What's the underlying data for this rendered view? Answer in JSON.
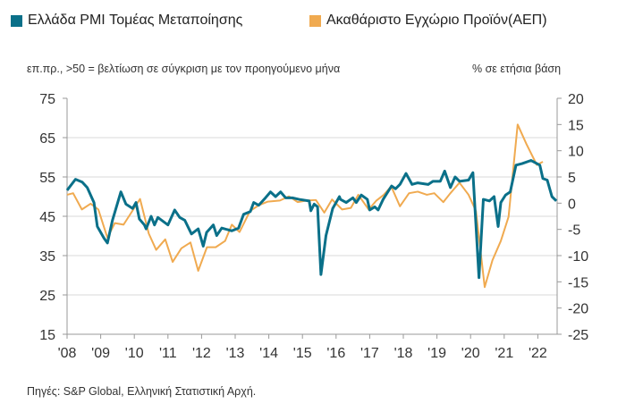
{
  "chart_data": {
    "type": "line",
    "legend": [
      "Ελλάδα PMI Τομέας Μεταποίησης",
      "Ακαθάριστο Εγχώριο Προϊόν(ΑΕΠ)"
    ],
    "legend_position": "top",
    "left_axis_label": "επ.πρ., >50 = βελτίωση σε σύγκριση με τον προηγούμενο μήνα",
    "right_axis_label": "% σε ετήσια βάση",
    "source": "Πηγές: S&P Global, Ελληνική Στατιστική Αρχή.",
    "x_ticks": [
      "'08",
      "'09",
      "'10",
      "'11",
      "'12",
      "'13",
      "'14",
      "'15",
      "'16",
      "'17",
      "'18",
      "'19",
      "'20",
      "'21",
      "'22"
    ],
    "xlim": [
      2008,
      2022.6
    ],
    "left_ylim": [
      15,
      75
    ],
    "left_ticks": [
      75,
      65,
      55,
      45,
      35,
      25,
      15
    ],
    "right_ylim": [
      -25,
      20
    ],
    "right_ticks": [
      20,
      15,
      10,
      5,
      0,
      -5,
      -10,
      -15,
      -20,
      -25
    ],
    "colors": {
      "pmi": "#0a7089",
      "gdp": "#f0aa50",
      "grid": "#d9d9d9",
      "axis": "#999999"
    },
    "series": [
      {
        "name": "Ελλάδα PMI Τομέας Μεταποίησης",
        "axis": "left",
        "points": [
          [
            2008.0,
            51.6
          ],
          [
            2008.25,
            54.4
          ],
          [
            2008.45,
            53.7
          ],
          [
            2008.6,
            52.3
          ],
          [
            2008.8,
            48.5
          ],
          [
            2008.9,
            42.4
          ],
          [
            2009.1,
            39.4
          ],
          [
            2009.2,
            38.2
          ],
          [
            2009.35,
            44
          ],
          [
            2009.6,
            51.2
          ],
          [
            2009.75,
            48.1
          ],
          [
            2009.95,
            47
          ],
          [
            2010.05,
            48.5
          ],
          [
            2010.15,
            44.3
          ],
          [
            2010.3,
            42.8
          ],
          [
            2010.35,
            41.8
          ],
          [
            2010.5,
            45
          ],
          [
            2010.6,
            42.8
          ],
          [
            2010.7,
            44.7
          ],
          [
            2011.0,
            42.8
          ],
          [
            2011.2,
            46.6
          ],
          [
            2011.35,
            44.7
          ],
          [
            2011.5,
            44
          ],
          [
            2011.7,
            40.5
          ],
          [
            2011.9,
            41.8
          ],
          [
            2012.05,
            37.4
          ],
          [
            2012.15,
            40.9
          ],
          [
            2012.35,
            42.8
          ],
          [
            2012.45,
            40.1
          ],
          [
            2012.6,
            42
          ],
          [
            2012.9,
            41.3
          ],
          [
            2013.1,
            42
          ],
          [
            2013.25,
            45.5
          ],
          [
            2013.45,
            46.2
          ],
          [
            2013.55,
            48.5
          ],
          [
            2013.7,
            47.8
          ],
          [
            2013.9,
            49.7
          ],
          [
            2014.05,
            51.2
          ],
          [
            2014.2,
            50
          ],
          [
            2014.35,
            51.2
          ],
          [
            2014.5,
            49.7
          ],
          [
            2014.7,
            49.7
          ],
          [
            2014.9,
            49.3
          ],
          [
            2015.2,
            48.9
          ],
          [
            2015.25,
            46.4
          ],
          [
            2015.35,
            48.1
          ],
          [
            2015.45,
            47.4
          ],
          [
            2015.55,
            30.2
          ],
          [
            2015.7,
            40.1
          ],
          [
            2015.9,
            47
          ],
          [
            2016.1,
            50
          ],
          [
            2016.13,
            49.3
          ],
          [
            2016.3,
            48.5
          ],
          [
            2016.5,
            49.7
          ],
          [
            2016.6,
            48.5
          ],
          [
            2016.75,
            50.4
          ],
          [
            2016.93,
            49.3
          ],
          [
            2017.0,
            46.6
          ],
          [
            2017.15,
            47.4
          ],
          [
            2017.25,
            46.6
          ],
          [
            2017.4,
            49.3
          ],
          [
            2017.65,
            52.7
          ],
          [
            2017.77,
            52
          ],
          [
            2017.9,
            53.1
          ],
          [
            2018.08,
            55.9
          ],
          [
            2018.26,
            53.1
          ],
          [
            2018.43,
            53.5
          ],
          [
            2018.74,
            53.1
          ],
          [
            2018.88,
            53.9
          ],
          [
            2019.1,
            53.9
          ],
          [
            2019.23,
            56.5
          ],
          [
            2019.4,
            52.3
          ],
          [
            2019.54,
            55
          ],
          [
            2019.67,
            53.9
          ],
          [
            2019.94,
            54.2
          ],
          [
            2020.07,
            56.1
          ],
          [
            2020.25,
            29.4
          ],
          [
            2020.38,
            49.3
          ],
          [
            2020.56,
            48.9
          ],
          [
            2020.7,
            50
          ],
          [
            2020.82,
            42.4
          ],
          [
            2020.9,
            48.5
          ],
          [
            2021.04,
            50.4
          ],
          [
            2021.18,
            51.2
          ],
          [
            2021.35,
            58
          ],
          [
            2021.53,
            58.4
          ],
          [
            2021.8,
            59.2
          ],
          [
            2022.06,
            58
          ],
          [
            2022.15,
            54.6
          ],
          [
            2022.28,
            54.2
          ],
          [
            2022.42,
            50
          ],
          [
            2022.55,
            48.9
          ]
        ]
      },
      {
        "name": "Ακαθάριστο Εγχώριο Προϊόν(ΑΕΠ)",
        "axis": "right",
        "points": [
          [
            2008.0,
            1.6
          ],
          [
            2008.18,
            1.9
          ],
          [
            2008.44,
            -1.2
          ],
          [
            2008.7,
            -0.1
          ],
          [
            2008.93,
            -1.2
          ],
          [
            2009.2,
            -6.6
          ],
          [
            2009.42,
            -3.8
          ],
          [
            2009.68,
            -4.1
          ],
          [
            2010.17,
            0.8
          ],
          [
            2010.43,
            -5.8
          ],
          [
            2010.65,
            -8.9
          ],
          [
            2010.92,
            -6.9
          ],
          [
            2011.14,
            -11.2
          ],
          [
            2011.4,
            -8.6
          ],
          [
            2011.67,
            -7.5
          ],
          [
            2011.9,
            -12.9
          ],
          [
            2012.16,
            -8.4
          ],
          [
            2012.42,
            -8.4
          ],
          [
            2012.7,
            -7.2
          ],
          [
            2012.9,
            -4.1
          ],
          [
            2013.13,
            -5.5
          ],
          [
            2013.44,
            -1.5
          ],
          [
            2013.7,
            -0.4
          ],
          [
            2013.97,
            0.3
          ],
          [
            2014.33,
            0.5
          ],
          [
            2014.6,
            1.3
          ],
          [
            2014.86,
            0.2
          ],
          [
            2015.12,
            0.5
          ],
          [
            2015.4,
            0.6
          ],
          [
            2015.65,
            -1.8
          ],
          [
            2015.88,
            0.7
          ],
          [
            2016.18,
            -1.2
          ],
          [
            2016.44,
            -0.9
          ],
          [
            2016.66,
            1.6
          ],
          [
            2016.97,
            -1.2
          ],
          [
            2017.2,
            0.5
          ],
          [
            2017.42,
            1.6
          ],
          [
            2017.64,
            3.2
          ],
          [
            2017.9,
            -0.6
          ],
          [
            2018.17,
            1.9
          ],
          [
            2018.43,
            2.2
          ],
          [
            2018.7,
            1.6
          ],
          [
            2018.92,
            1.9
          ],
          [
            2019.19,
            0.2
          ],
          [
            2019.4,
            1.9
          ],
          [
            2019.67,
            3.9
          ],
          [
            2019.94,
            1.6
          ],
          [
            2020.16,
            -1.5
          ],
          [
            2020.42,
            -16
          ],
          [
            2020.65,
            -10.9
          ],
          [
            2020.9,
            -7.2
          ],
          [
            2021.13,
            -2.6
          ],
          [
            2021.4,
            15
          ],
          [
            2021.66,
            11.3
          ],
          [
            2021.97,
            7.3
          ],
          [
            2022.15,
            7.9
          ]
        ]
      }
    ]
  }
}
